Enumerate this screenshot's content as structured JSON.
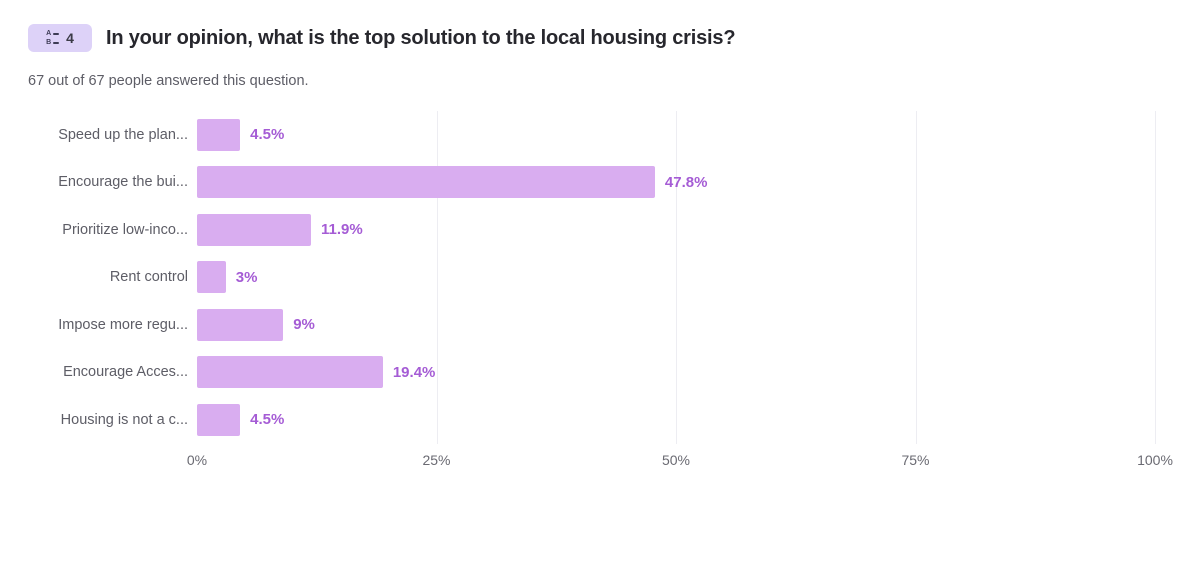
{
  "header": {
    "badge": {
      "icon": "multiple-choice-icon",
      "icon_letters": [
        "A",
        "B"
      ],
      "number": "4"
    },
    "title": "In your opinion, what is the top solution to the local housing crisis?"
  },
  "subtitle": "67 out of 67 people answered this question.",
  "chart_data": {
    "type": "bar",
    "orientation": "horizontal",
    "title": "In your opinion, what is the top solution to the local housing crisis?",
    "categories": [
      "Speed up the plan...",
      "Encourage the bui...",
      "Prioritize low-inco...",
      "Rent control",
      "Impose more regu...",
      "Encourage Acces...",
      "Housing is not a c..."
    ],
    "values": [
      4.5,
      47.8,
      11.9,
      3,
      9,
      19.4,
      4.5
    ],
    "value_labels": [
      "4.5%",
      "47.8%",
      "11.9%",
      "3%",
      "9%",
      "19.4%",
      "4.5%"
    ],
    "x_ticks": [
      "0%",
      "25%",
      "50%",
      "75%",
      "100%"
    ],
    "x_tick_values": [
      0,
      25,
      50,
      75,
      100
    ],
    "xlim": [
      0,
      100
    ],
    "grid": "vertical-at-25-50-75-100",
    "legend": "none",
    "colors": {
      "bar_fill": "#d9adf0",
      "value_label": "#a55cd5",
      "category_label": "#5d5d66",
      "tick_label": "#6a6a72",
      "gridline": "#ededf2",
      "badge_bg": "#ddd2f8",
      "title_text": "#27272d"
    }
  }
}
